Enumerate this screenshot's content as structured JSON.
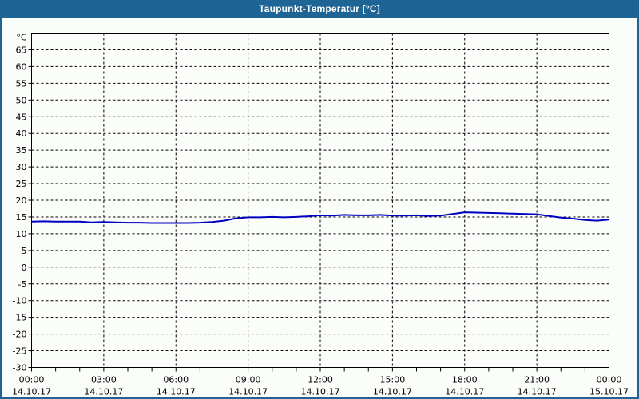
{
  "window": {
    "title": "Taupunkt-Temperatur [°C]"
  },
  "colors": {
    "titlebar": "#1e6494",
    "window_border": "#1e6494",
    "background": "#fbfdfa",
    "plot_border": "#000000",
    "grid": "#000000",
    "tick": "#000000",
    "label_text": "#000000",
    "title_text": "#ffffff",
    "series": "#0000c0"
  },
  "chart_data": {
    "type": "line",
    "title": "Taupunkt-Temperatur [°C]",
    "ylabel": "°C",
    "ylim": [
      -30,
      70
    ],
    "y_tick_step": 5,
    "grid": "dashed",
    "legend": "none",
    "x_hours_range": [
      0,
      24
    ],
    "x_minor_tick_every_hours": 1,
    "x_major_ticks": [
      {
        "hour": 0,
        "time": "00:00",
        "date": "14.10.17"
      },
      {
        "hour": 3,
        "time": "03:00",
        "date": "14.10.17"
      },
      {
        "hour": 6,
        "time": "06:00",
        "date": "14.10.17"
      },
      {
        "hour": 9,
        "time": "09:00",
        "date": "14.10.17"
      },
      {
        "hour": 12,
        "time": "12:00",
        "date": "14.10.17"
      },
      {
        "hour": 15,
        "time": "15:00",
        "date": "14.10.17"
      },
      {
        "hour": 18,
        "time": "18:00",
        "date": "14.10.17"
      },
      {
        "hour": 21,
        "time": "21:00",
        "date": "14.10.17"
      },
      {
        "hour": 24,
        "time": "00:00",
        "date": "15.10.17"
      }
    ],
    "series": [
      {
        "name": "Taupunkt-Temperatur",
        "color": "#0000c0",
        "x_hours": [
          0,
          0.5,
          1,
          1.5,
          2,
          2.5,
          3,
          3.5,
          4,
          4.5,
          5,
          5.5,
          6,
          6.5,
          7,
          7.5,
          8,
          8.5,
          9,
          9.5,
          10,
          10.5,
          11,
          11.5,
          12,
          12.5,
          13,
          13.5,
          14,
          14.5,
          15,
          15.5,
          16,
          16.5,
          17,
          17.5,
          18,
          18.5,
          19,
          19.5,
          20,
          20.5,
          21,
          21.5,
          22,
          22.5,
          23,
          23.5,
          24
        ],
        "values": [
          13.6,
          13.7,
          13.6,
          13.6,
          13.6,
          13.4,
          13.5,
          13.4,
          13.3,
          13.3,
          13.2,
          13.2,
          13.2,
          13.2,
          13.3,
          13.5,
          13.9,
          14.6,
          14.9,
          14.9,
          15.0,
          14.9,
          15.0,
          15.2,
          15.5,
          15.4,
          15.6,
          15.5,
          15.5,
          15.6,
          15.4,
          15.4,
          15.5,
          15.3,
          15.4,
          15.9,
          16.4,
          16.3,
          16.2,
          16.1,
          16.0,
          15.9,
          15.8,
          15.3,
          14.8,
          14.5,
          14.1,
          13.9,
          14.2
        ]
      }
    ]
  }
}
